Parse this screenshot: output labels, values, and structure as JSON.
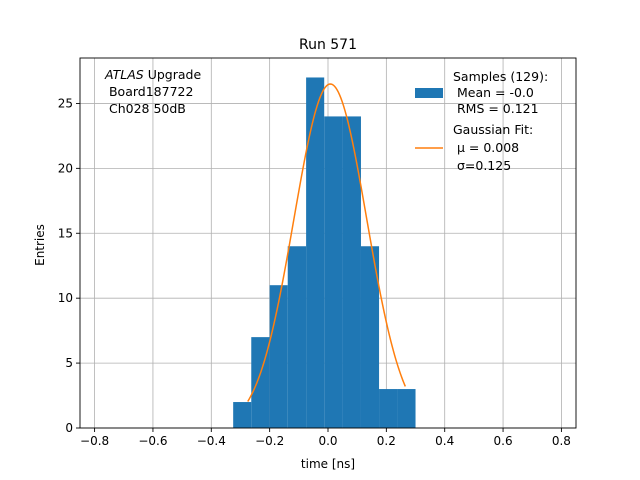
{
  "chart_data": {
    "type": "bar",
    "title": "Run 571",
    "xlabel": "time [ns]",
    "ylabel": "Entries",
    "xlim": [
      -0.85,
      0.85
    ],
    "ylim": [
      0,
      28.5
    ],
    "grid": true,
    "xticks": [
      -0.8,
      -0.6,
      -0.4,
      -0.2,
      0.0,
      0.2,
      0.4,
      0.6,
      0.8
    ],
    "xtick_labels": [
      "−0.8",
      "−0.6",
      "−0.4",
      "−0.2",
      "0.0",
      "0.2",
      "0.4",
      "0.6",
      "0.8"
    ],
    "yticks": [
      0,
      5,
      10,
      15,
      20,
      25
    ],
    "ytick_labels": [
      "0",
      "5",
      "10",
      "15",
      "20",
      "25"
    ],
    "histogram": {
      "bin_edges": [
        -0.325,
        -0.263,
        -0.2,
        -0.138,
        -0.075,
        -0.013,
        0.05,
        0.113,
        0.175,
        0.238,
        0.3
      ],
      "counts": [
        2,
        7,
        11,
        14,
        27,
        24,
        24,
        14,
        3,
        3
      ],
      "color": "#1f77b4"
    },
    "fit": {
      "mu": 0.008,
      "sigma": 0.125,
      "amplitude": 26.5,
      "x_range": [
        -0.275,
        0.265
      ],
      "color": "#ff7f0e"
    },
    "annotation": {
      "italic": "ATLAS",
      "line1_rest": " Upgrade",
      "line2": " Board187722",
      "line3": " Ch028 50dB"
    },
    "legend": {
      "placement": "top-right",
      "entries": [
        {
          "lines": [
            "Samples (129):",
            " Mean = -0.0",
            " RMS = 0.121"
          ],
          "color": "#1f77b4",
          "kind": "patch"
        },
        {
          "lines": [
            "Gaussian Fit:",
            " μ = 0.008",
            " σ=0.125"
          ],
          "color": "#ff7f0e",
          "kind": "line"
        }
      ]
    }
  }
}
